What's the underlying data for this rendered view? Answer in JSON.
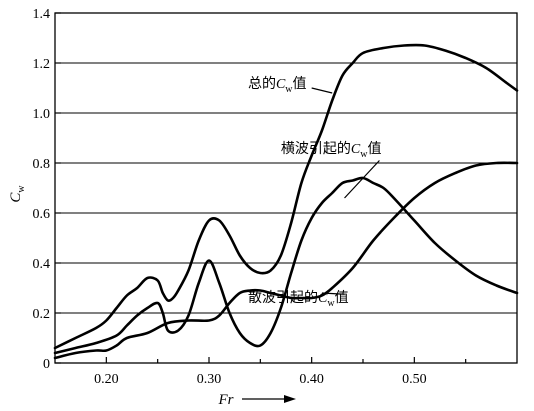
{
  "chart_data": {
    "type": "line",
    "title": "",
    "xlabel": "Fr",
    "ylabel": "C",
    "ylabel_sub": "w",
    "xlim": [
      0.15,
      0.6
    ],
    "ylim": [
      0,
      1.4
    ],
    "x_ticks": [
      {
        "value": 0.2,
        "label": "0.20"
      },
      {
        "value": 0.3,
        "label": "0.30"
      },
      {
        "value": 0.4,
        "label": "0.40"
      },
      {
        "value": 0.5,
        "label": "0.50"
      }
    ],
    "y_ticks": [
      {
        "value": 0,
        "label": "0"
      },
      {
        "value": 0.2,
        "label": "0.2"
      },
      {
        "value": 0.4,
        "label": "0.4"
      },
      {
        "value": 0.6,
        "label": "0.6"
      },
      {
        "value": 0.8,
        "label": "0.8"
      },
      {
        "value": 1.0,
        "label": "1.0"
      },
      {
        "value": 1.2,
        "label": "1.2"
      },
      {
        "value": 1.4,
        "label": "1.4"
      }
    ],
    "grid": {
      "horizontal": true,
      "vertical": false
    },
    "series": [
      {
        "key": "total",
        "x": [
          0.15,
          0.17,
          0.19,
          0.2,
          0.21,
          0.22,
          0.23,
          0.24,
          0.25,
          0.255,
          0.26,
          0.265,
          0.27,
          0.28,
          0.29,
          0.3,
          0.31,
          0.32,
          0.33,
          0.34,
          0.35,
          0.36,
          0.37,
          0.38,
          0.39,
          0.4,
          0.41,
          0.42,
          0.43,
          0.44,
          0.45,
          0.47,
          0.49,
          0.51,
          0.53,
          0.55,
          0.57,
          0.59,
          0.6
        ],
        "y": [
          0.06,
          0.1,
          0.14,
          0.17,
          0.22,
          0.27,
          0.3,
          0.34,
          0.33,
          0.28,
          0.25,
          0.26,
          0.29,
          0.37,
          0.49,
          0.57,
          0.57,
          0.51,
          0.43,
          0.38,
          0.36,
          0.37,
          0.43,
          0.56,
          0.72,
          0.83,
          0.93,
          1.05,
          1.15,
          1.2,
          1.24,
          1.26,
          1.27,
          1.27,
          1.25,
          1.22,
          1.18,
          1.12,
          1.09
        ]
      },
      {
        "key": "transverse",
        "x": [
          0.15,
          0.17,
          0.19,
          0.21,
          0.22,
          0.23,
          0.24,
          0.25,
          0.255,
          0.26,
          0.27,
          0.28,
          0.29,
          0.3,
          0.31,
          0.32,
          0.33,
          0.34,
          0.35,
          0.36,
          0.37,
          0.38,
          0.39,
          0.4,
          0.41,
          0.42,
          0.43,
          0.44,
          0.45,
          0.46,
          0.47,
          0.48,
          0.5,
          0.52,
          0.54,
          0.56,
          0.58,
          0.6
        ],
        "y": [
          0.04,
          0.06,
          0.08,
          0.11,
          0.15,
          0.19,
          0.22,
          0.24,
          0.2,
          0.13,
          0.13,
          0.19,
          0.32,
          0.41,
          0.32,
          0.2,
          0.12,
          0.08,
          0.07,
          0.12,
          0.22,
          0.36,
          0.49,
          0.58,
          0.64,
          0.68,
          0.72,
          0.73,
          0.74,
          0.72,
          0.7,
          0.66,
          0.57,
          0.48,
          0.41,
          0.35,
          0.31,
          0.28
        ]
      },
      {
        "key": "divergent",
        "x": [
          0.15,
          0.17,
          0.19,
          0.2,
          0.21,
          0.22,
          0.24,
          0.26,
          0.28,
          0.3,
          0.31,
          0.32,
          0.33,
          0.34,
          0.35,
          0.36,
          0.37,
          0.38,
          0.39,
          0.4,
          0.41,
          0.42,
          0.44,
          0.46,
          0.48,
          0.5,
          0.52,
          0.54,
          0.56,
          0.58,
          0.6
        ],
        "y": [
          0.02,
          0.04,
          0.05,
          0.05,
          0.07,
          0.1,
          0.12,
          0.16,
          0.17,
          0.17,
          0.19,
          0.24,
          0.28,
          0.29,
          0.29,
          0.28,
          0.27,
          0.26,
          0.26,
          0.26,
          0.27,
          0.3,
          0.38,
          0.49,
          0.58,
          0.66,
          0.72,
          0.76,
          0.79,
          0.8,
          0.8
        ]
      }
    ],
    "annotations": [
      {
        "key": "total",
        "text": "总的",
        "var": "C",
        "sub": "w",
        "suffix": "值",
        "at": [
          0.395,
          1.12
        ],
        "leader": [
          [
            0.4,
            1.1
          ],
          [
            0.42,
            1.08
          ]
        ]
      },
      {
        "key": "transverse",
        "text": "横波引起的",
        "var": "C",
        "sub": "w",
        "suffix": "值",
        "at": [
          0.468,
          0.86
        ],
        "leader": [
          [
            0.466,
            0.81
          ],
          [
            0.432,
            0.66
          ]
        ]
      },
      {
        "key": "divergent",
        "text": "散波引起的",
        "var": "C",
        "sub": "w",
        "suffix": "值",
        "at": [
          0.436,
          0.265
        ],
        "leader": [
          [
            0.432,
            0.275
          ],
          [
            0.41,
            0.28
          ]
        ]
      }
    ]
  }
}
